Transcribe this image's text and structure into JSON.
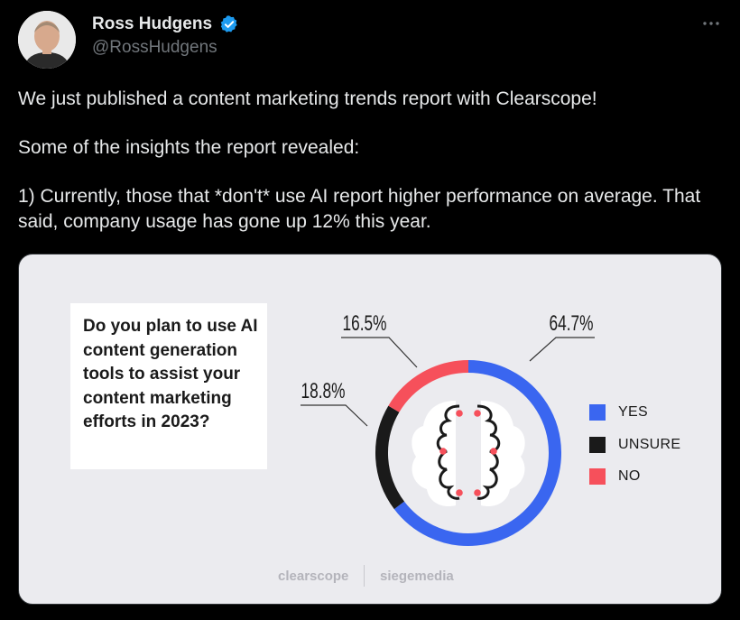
{
  "author": {
    "display_name": "Ross Hudgens",
    "handle": "@RossHudgens",
    "verified": true,
    "verified_color": "#1d9bf0"
  },
  "more_icon": "more-horizontal-icon",
  "tweet": {
    "paragraphs": [
      "We just published a content marketing trends report with Clearscope!",
      "Some of the insights the report revealed:",
      "1) Currently, those that *don't* use AI report higher performance on average. That said, company usage has gone up 12% this year."
    ]
  },
  "media": {
    "question": "Do you plan to use AI content generation tools to assist your content marketing efforts in 2023?",
    "brands": [
      "clearscope",
      "siegemedia"
    ],
    "chart_data": {
      "type": "pie",
      "categories": [
        "YES",
        "UNSURE",
        "NO"
      ],
      "values": [
        64.7,
        18.8,
        16.5
      ],
      "value_labels": [
        "64.7%",
        "18.8%",
        "16.5%"
      ],
      "colors": [
        "#3a66f0",
        "#1a1a1a",
        "#f6505b"
      ],
      "legend_position": "right",
      "donut": true
    }
  }
}
